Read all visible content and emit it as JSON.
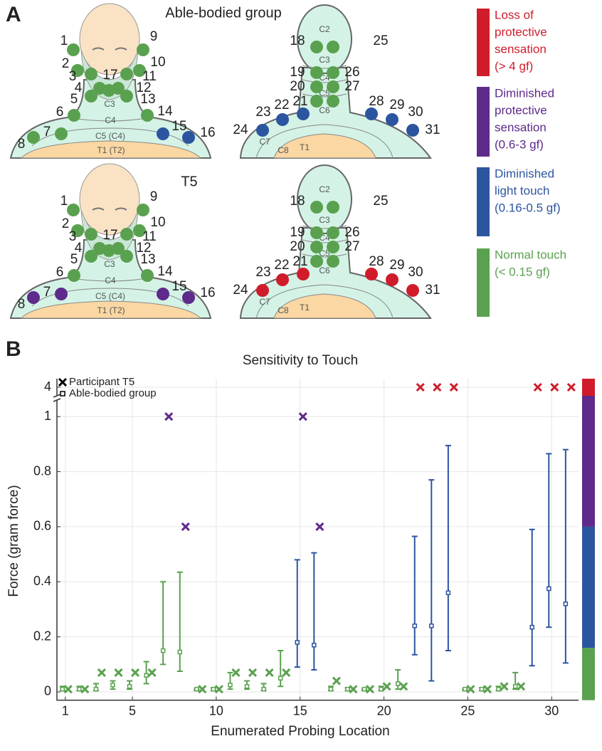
{
  "panel_a": {
    "label": "A",
    "groups": [
      {
        "title": "Able-bodied group"
      },
      {
        "title": "T5"
      }
    ],
    "front_regions": [
      "C3",
      "C4",
      "C5 (C4)",
      "T1 (T2)"
    ],
    "back_regions": [
      "C2",
      "C3",
      "C4",
      "C5",
      "C6",
      "C7",
      "C8",
      "T1"
    ],
    "legend": [
      {
        "lines": [
          "Loss of",
          "protective",
          "sensation",
          "(> 4 gf)"
        ],
        "color": "#d01c2a"
      },
      {
        "lines": [
          "Diminished",
          "protective",
          "sensation",
          "(0.6-3 gf)"
        ],
        "color": "#5e2a8c"
      },
      {
        "lines": [
          "Diminished",
          "light touch",
          "(0.16-0.5 gf)"
        ],
        "color": "#2c55a0"
      },
      {
        "lines": [
          "Normal touch",
          "(< 0.15 gf)"
        ],
        "color": "#5aa14f"
      }
    ]
  },
  "chart_data": {
    "type": "errorbar",
    "panel_label": "B",
    "title": "Sensitivity to Touch",
    "x_label": "Enumerated Probing Location",
    "y_label": "Force (gram force)",
    "x": [
      1,
      2,
      3,
      4,
      5,
      6,
      7,
      8,
      9,
      10,
      11,
      12,
      13,
      14,
      15,
      16,
      17,
      18,
      19,
      20,
      21,
      22,
      23,
      24,
      25,
      26,
      27,
      28,
      29,
      30,
      31
    ],
    "xlim": [
      0.5,
      31.6
    ],
    "xticks": [
      1,
      5,
      10,
      15,
      20,
      25,
      30
    ],
    "ylim": [
      -0.03,
      4.05
    ],
    "ybreak": [
      1.06,
      3.95
    ],
    "yticks": [
      0,
      0.2,
      0.4,
      0.6,
      0.8,
      1,
      4
    ],
    "grid": true,
    "series": [
      {
        "name": "Participant T5",
        "marker": "x",
        "values": [
          0.01,
          0.01,
          0.07,
          0.07,
          0.07,
          0.07,
          1,
          0.6,
          0.01,
          0.01,
          0.07,
          0.07,
          0.07,
          0.07,
          1,
          0.6,
          0.04,
          0.01,
          0.01,
          0.02,
          0.02,
          4,
          4,
          4,
          0.01,
          0.01,
          0.02,
          0.02,
          4,
          4,
          4
        ],
        "colors": [
          "#5aa14f",
          "#5aa14f",
          "#5aa14f",
          "#5aa14f",
          "#5aa14f",
          "#5aa14f",
          "#5e2a8c",
          "#5e2a8c",
          "#5aa14f",
          "#5aa14f",
          "#5aa14f",
          "#5aa14f",
          "#5aa14f",
          "#5aa14f",
          "#5e2a8c",
          "#5e2a8c",
          "#5aa14f",
          "#5aa14f",
          "#5aa14f",
          "#5aa14f",
          "#5aa14f",
          "#d01c2a",
          "#d01c2a",
          "#d01c2a",
          "#5aa14f",
          "#5aa14f",
          "#5aa14f",
          "#5aa14f",
          "#d01c2a",
          "#d01c2a",
          "#d01c2a"
        ]
      },
      {
        "name": "Able-bodied group",
        "marker": "square",
        "values": [
          0.01,
          0.01,
          0.01,
          0.025,
          0.02,
          0.06,
          0.15,
          0.145,
          0.01,
          0.01,
          0.025,
          0.02,
          0.01,
          0.05,
          0.18,
          0.17,
          0.01,
          0.01,
          0.01,
          0.01,
          0.03,
          0.24,
          0.24,
          0.36,
          0.01,
          0.01,
          0.01,
          0.02,
          0.235,
          0.375,
          0.32
        ],
        "lower": [
          0.005,
          0.005,
          0.005,
          0.01,
          0.01,
          0.03,
          0.1,
          0.075,
          0.005,
          0.005,
          0.01,
          0.01,
          0.005,
          0.02,
          0.09,
          0.08,
          0.005,
          0.005,
          0.005,
          0.005,
          0.01,
          0.135,
          0.04,
          0.15,
          0.005,
          0.005,
          0.005,
          0.01,
          0.095,
          0.235,
          0.105
        ],
        "upper": [
          0.02,
          0.02,
          0.03,
          0.04,
          0.04,
          0.11,
          0.4,
          0.435,
          0.01,
          0.015,
          0.07,
          0.04,
          0.03,
          0.15,
          0.48,
          0.505,
          0.02,
          0.015,
          0.01,
          0.02,
          0.08,
          0.565,
          0.77,
          0.895,
          0.01,
          0.015,
          0.02,
          0.07,
          0.59,
          0.865,
          0.88
        ],
        "colors": [
          "#5aa14f",
          "#5aa14f",
          "#5aa14f",
          "#5aa14f",
          "#5aa14f",
          "#5aa14f",
          "#5aa14f",
          "#5aa14f",
          "#5aa14f",
          "#5aa14f",
          "#5aa14f",
          "#5aa14f",
          "#5aa14f",
          "#5aa14f",
          "#2c55a0",
          "#2c55a0",
          "#5aa14f",
          "#5aa14f",
          "#5aa14f",
          "#5aa14f",
          "#5aa14f",
          "#2c55a0",
          "#2c55a0",
          "#2c55a0",
          "#5aa14f",
          "#5aa14f",
          "#5aa14f",
          "#5aa14f",
          "#2c55a0",
          "#2c55a0",
          "#2c55a0"
        ]
      }
    ],
    "bands": [
      {
        "color": "#5aa14f",
        "from": -0.03,
        "to": 0.16
      },
      {
        "color": "#2c55a0",
        "from": 0.16,
        "to": 0.6
      },
      {
        "color": "#5e2a8c",
        "from": 0.6,
        "to": 3.95
      },
      {
        "color": "#d01c2a",
        "from": 3.95,
        "to": 4.05
      }
    ]
  }
}
